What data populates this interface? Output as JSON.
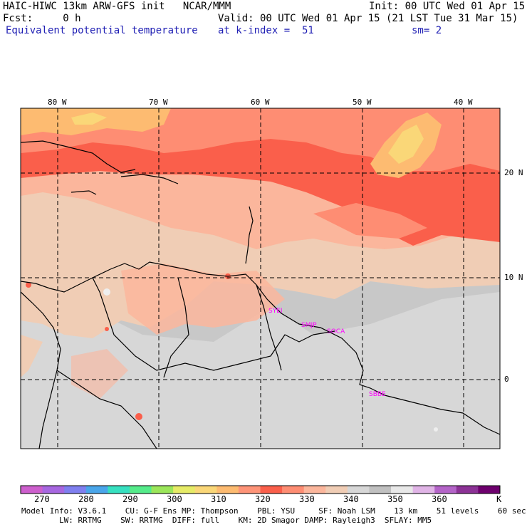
{
  "header": {
    "line1_left": "HAIC-HIWC 13km ARW-GFS init   NCAR/MMM",
    "line1_right": "Init: 00 UTC Wed 01 Apr 15",
    "line2_left": "Fcst:     0 h",
    "line2_right": "Valid: 00 UTC Wed 01 Apr 15 (21 LST Tue 31 Mar 15)",
    "line3_left": "Equivalent potential temperature",
    "line3_mid": "at k-index =  51",
    "line3_right": "sm= 2"
  },
  "map": {
    "lon_labels": [
      "80 W",
      "70 W",
      "60 W",
      "50 W",
      "40 W"
    ],
    "lat_labels": [
      "20 N",
      "10 N",
      "0"
    ],
    "stations": [
      "SYEI",
      "SMJP",
      "SOCA",
      "SBBE"
    ],
    "colors": {
      "band_320": "#fecb7e",
      "band_330": "#fe9478",
      "band_335": "#fa5f4b",
      "band_340": "#fbb69c",
      "band_345": "#f0cdb5",
      "band_350": "#d7d7d7",
      "band_355": "#c8c8c8"
    }
  },
  "colorbar": {
    "labels": [
      "270",
      "280",
      "290",
      "300",
      "310",
      "320",
      "330",
      "340",
      "350",
      "360",
      "K"
    ],
    "colors": [
      "#cd5fcd",
      "#a767e0",
      "#7f7fef",
      "#4aa6ea",
      "#37e0c0",
      "#55eb8a",
      "#9be65a",
      "#e6eb67",
      "#fad778",
      "#fdbb71",
      "#fe9478",
      "#fa5f4b",
      "#fe8d73",
      "#fbb69c",
      "#f0cdb5",
      "#d7d7d7",
      "#c0c0c0",
      "#e8e8e8",
      "#e0b4e6",
      "#b464c8",
      "#8c3296",
      "#6e006e"
    ]
  },
  "footer": {
    "line1": "Model Info: V3.6.1    CU: G-F Ens MP: Thompson    PBL: YSU     SF: Noah LSM    13 km    51 levels    60 sec",
    "line2": "        LW: RRTMG    SW: RRTMG  DIFF: full    KM: 2D Smagor DAMP: Rayleigh3  SFLAY: MM5"
  }
}
